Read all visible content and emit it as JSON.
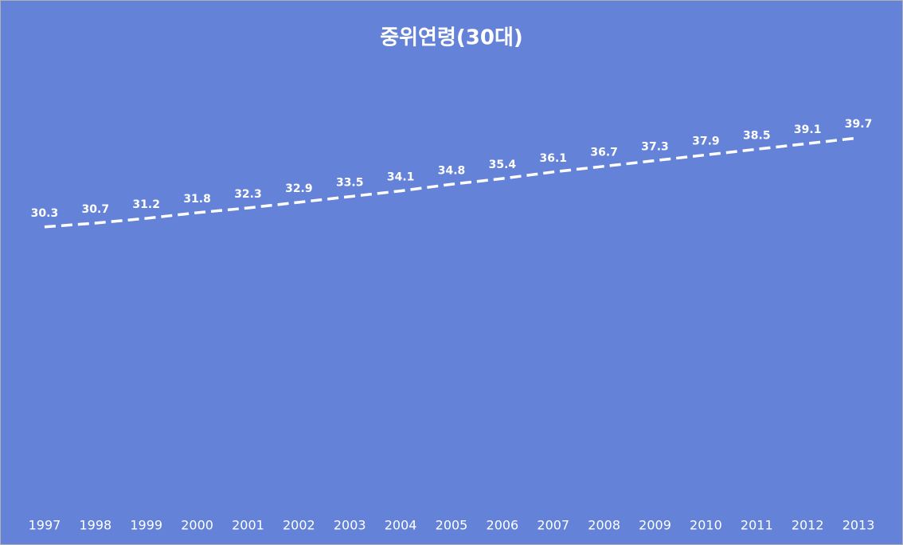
{
  "chart_data": {
    "type": "line",
    "title": "중위연령(30대)",
    "categories": [
      "1997",
      "1998",
      "1999",
      "2000",
      "2001",
      "2002",
      "2003",
      "2004",
      "2005",
      "2006",
      "2007",
      "2008",
      "2009",
      "2010",
      "2011",
      "2012",
      "2013"
    ],
    "values": [
      30.3,
      30.7,
      31.2,
      31.8,
      32.3,
      32.9,
      33.5,
      34.1,
      34.8,
      35.4,
      36.1,
      36.7,
      37.3,
      37.9,
      38.5,
      39.1,
      39.7
    ],
    "color": "#ffffff",
    "background": "#6482d8",
    "line_style": "dashed",
    "drop_lines": true,
    "data_labels": true,
    "ylim": [
      0,
      45
    ]
  }
}
